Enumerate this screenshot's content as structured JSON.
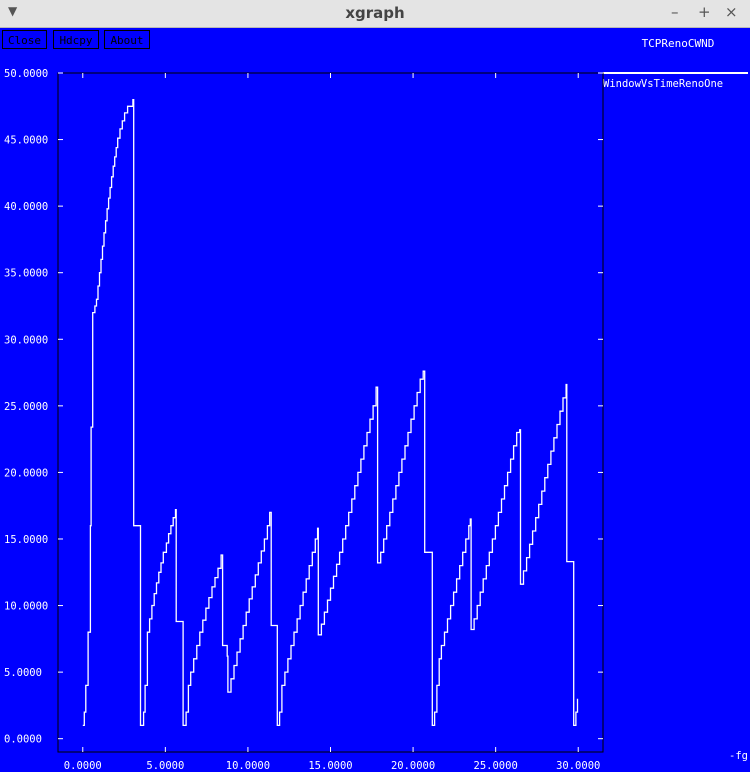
{
  "window": {
    "title": "xgraph",
    "menu_icon": "triangle-down-icon",
    "controls": [
      "–",
      "+",
      "×"
    ]
  },
  "toolbar": {
    "close_label": "Close",
    "hdcpy_label": "Hdcpy",
    "about_label": "About"
  },
  "plot_title": "TCPRenoCWND",
  "corner_label": "-fg",
  "colors": {
    "background": "#0000ff",
    "foreground": "#ffffff",
    "titlebar": "#e4e4e4"
  },
  "chart_data": {
    "type": "line",
    "title": "TCPRenoCWND",
    "xlabel": "",
    "ylabel": "",
    "xlim": [
      -1.5,
      31.5
    ],
    "ylim": [
      -1.0,
      50.0
    ],
    "x_ticks": [
      "0.0000",
      "5.0000",
      "10.0000",
      "15.0000",
      "20.0000",
      "25.0000",
      "30.0000"
    ],
    "y_ticks": [
      "0.0000",
      "5.0000",
      "10.0000",
      "15.0000",
      "20.0000",
      "25.0000",
      "30.0000",
      "35.0000",
      "40.0000",
      "45.0000",
      "50.0000"
    ],
    "series": [
      {
        "name": "WindowVsTimeRenoOne",
        "points": [
          [
            0.0,
            1.0
          ],
          [
            0.1,
            2.0
          ],
          [
            0.2,
            4.0
          ],
          [
            0.35,
            8.0
          ],
          [
            0.5,
            16.0
          ],
          [
            0.55,
            23.4
          ],
          [
            0.65,
            32.0
          ],
          [
            0.8,
            32.5
          ],
          [
            0.9,
            33.0
          ],
          [
            1.0,
            34.0
          ],
          [
            1.1,
            35.0
          ],
          [
            1.2,
            36.0
          ],
          [
            1.3,
            37.0
          ],
          [
            1.4,
            38.0
          ],
          [
            1.5,
            38.9
          ],
          [
            1.6,
            39.8
          ],
          [
            1.7,
            40.6
          ],
          [
            1.8,
            41.4
          ],
          [
            1.9,
            42.2
          ],
          [
            2.0,
            43.0
          ],
          [
            2.1,
            43.7
          ],
          [
            2.2,
            44.4
          ],
          [
            2.3,
            45.1
          ],
          [
            2.45,
            45.8
          ],
          [
            2.6,
            46.4
          ],
          [
            2.75,
            47.0
          ],
          [
            2.95,
            47.5
          ],
          [
            3.3,
            48.0
          ],
          [
            3.35,
            16.0
          ],
          [
            3.7,
            16.0
          ],
          [
            3.8,
            1.0
          ],
          [
            4.0,
            2.0
          ],
          [
            4.1,
            4.0
          ],
          [
            4.25,
            8.0
          ],
          [
            4.4,
            9.0
          ],
          [
            4.55,
            10.0
          ],
          [
            4.7,
            10.9
          ],
          [
            4.85,
            11.7
          ],
          [
            5.0,
            12.5
          ],
          [
            5.15,
            13.2
          ],
          [
            5.3,
            14.0
          ],
          [
            5.5,
            14.7
          ],
          [
            5.65,
            15.4
          ],
          [
            5.8,
            16.0
          ],
          [
            5.95,
            16.6
          ],
          [
            6.1,
            17.2
          ],
          [
            6.15,
            8.8
          ],
          [
            6.5,
            8.8
          ],
          [
            6.6,
            1.0
          ],
          [
            6.8,
            2.0
          ],
          [
            6.95,
            4.0
          ],
          [
            7.1,
            5.0
          ],
          [
            7.3,
            6.0
          ],
          [
            7.5,
            7.0
          ],
          [
            7.7,
            8.0
          ],
          [
            7.9,
            8.9
          ],
          [
            8.1,
            9.8
          ],
          [
            8.3,
            10.6
          ],
          [
            8.5,
            11.4
          ],
          [
            8.7,
            12.1
          ],
          [
            8.9,
            12.8
          ],
          [
            9.1,
            13.8
          ],
          [
            9.2,
            7.0
          ],
          [
            9.5,
            6.2
          ],
          [
            9.55,
            3.5
          ],
          [
            9.75,
            4.5
          ],
          [
            9.95,
            5.5
          ],
          [
            10.15,
            6.5
          ],
          [
            10.35,
            7.5
          ],
          [
            10.55,
            8.5
          ],
          [
            10.75,
            9.5
          ],
          [
            10.95,
            10.5
          ],
          [
            11.15,
            11.4
          ],
          [
            11.35,
            12.3
          ],
          [
            11.55,
            13.2
          ],
          [
            11.75,
            14.1
          ],
          [
            11.95,
            15.0
          ],
          [
            12.15,
            16.0
          ],
          [
            12.3,
            17.0
          ],
          [
            12.4,
            8.5
          ],
          [
            12.7,
            8.5
          ],
          [
            12.8,
            1.0
          ],
          [
            12.95,
            2.0
          ],
          [
            13.1,
            4.0
          ],
          [
            13.3,
            5.0
          ],
          [
            13.5,
            6.0
          ],
          [
            13.7,
            7.0
          ],
          [
            13.9,
            8.0
          ],
          [
            14.1,
            9.0
          ],
          [
            14.3,
            10.0
          ],
          [
            14.5,
            11.0
          ],
          [
            14.7,
            12.0
          ],
          [
            14.9,
            13.0
          ],
          [
            15.1,
            14.0
          ],
          [
            15.3,
            15.0
          ],
          [
            15.45,
            15.8
          ],
          [
            15.5,
            7.8
          ],
          [
            15.7,
            8.6
          ],
          [
            15.9,
            9.5
          ],
          [
            16.1,
            10.4
          ],
          [
            16.3,
            11.3
          ],
          [
            16.5,
            12.2
          ],
          [
            16.7,
            13.1
          ],
          [
            16.9,
            14.0
          ],
          [
            17.1,
            15.0
          ],
          [
            17.3,
            16.0
          ],
          [
            17.5,
            17.0
          ],
          [
            17.7,
            18.0
          ],
          [
            17.9,
            19.0
          ],
          [
            18.1,
            20.0
          ],
          [
            18.3,
            21.0
          ],
          [
            18.5,
            22.0
          ],
          [
            18.7,
            23.0
          ],
          [
            18.9,
            24.0
          ],
          [
            19.1,
            25.0
          ],
          [
            19.3,
            26.4
          ],
          [
            19.4,
            13.2
          ],
          [
            19.6,
            14.0
          ],
          [
            19.8,
            15.0
          ],
          [
            20.0,
            16.0
          ],
          [
            20.2,
            17.0
          ],
          [
            20.4,
            18.0
          ],
          [
            20.6,
            19.0
          ],
          [
            20.8,
            20.0
          ],
          [
            21.0,
            21.0
          ],
          [
            21.2,
            22.0
          ],
          [
            21.4,
            23.0
          ],
          [
            21.6,
            24.0
          ],
          [
            21.8,
            25.0
          ],
          [
            22.0,
            26.0
          ],
          [
            22.2,
            27.0
          ],
          [
            22.4,
            27.6
          ],
          [
            22.5,
            14.0
          ],
          [
            22.9,
            14.0
          ],
          [
            23.0,
            1.0
          ],
          [
            23.15,
            2.0
          ],
          [
            23.3,
            4.0
          ],
          [
            23.45,
            6.0
          ],
          [
            23.6,
            7.0
          ],
          [
            23.8,
            8.0
          ],
          [
            24.0,
            9.0
          ],
          [
            24.2,
            10.0
          ],
          [
            24.4,
            11.0
          ],
          [
            24.6,
            12.0
          ],
          [
            24.8,
            13.0
          ],
          [
            25.0,
            14.0
          ],
          [
            25.2,
            15.0
          ],
          [
            25.4,
            16.0
          ],
          [
            25.5,
            16.5
          ],
          [
            25.55,
            8.2
          ],
          [
            25.75,
            9.0
          ],
          [
            25.95,
            10.0
          ],
          [
            26.15,
            11.0
          ],
          [
            26.35,
            12.0
          ],
          [
            26.55,
            13.0
          ],
          [
            26.75,
            14.0
          ],
          [
            26.95,
            15.0
          ],
          [
            27.15,
            16.0
          ],
          [
            27.35,
            17.0
          ],
          [
            27.55,
            18.0
          ],
          [
            27.75,
            19.0
          ],
          [
            27.95,
            20.0
          ],
          [
            28.15,
            21.0
          ],
          [
            28.35,
            22.0
          ],
          [
            28.55,
            23.0
          ],
          [
            28.75,
            23.2
          ],
          [
            28.8,
            11.6
          ],
          [
            29.0,
            12.6
          ],
          [
            29.2,
            13.6
          ],
          [
            29.4,
            14.6
          ],
          [
            29.6,
            15.6
          ],
          [
            29.8,
            16.6
          ],
          [
            30.0,
            17.6
          ],
          [
            30.2,
            18.6
          ],
          [
            30.4,
            19.6
          ],
          [
            30.6,
            20.6
          ],
          [
            30.8,
            21.6
          ],
          [
            31.0,
            22.6
          ],
          [
            31.2,
            23.6
          ],
          [
            31.4,
            24.6
          ],
          [
            31.6,
            25.6
          ],
          [
            31.8,
            26.6
          ],
          [
            31.85,
            13.3
          ],
          [
            32.2,
            13.3
          ],
          [
            32.3,
            1.0
          ],
          [
            32.45,
            2.0
          ],
          [
            32.55,
            3.0
          ]
        ]
      }
    ]
  }
}
